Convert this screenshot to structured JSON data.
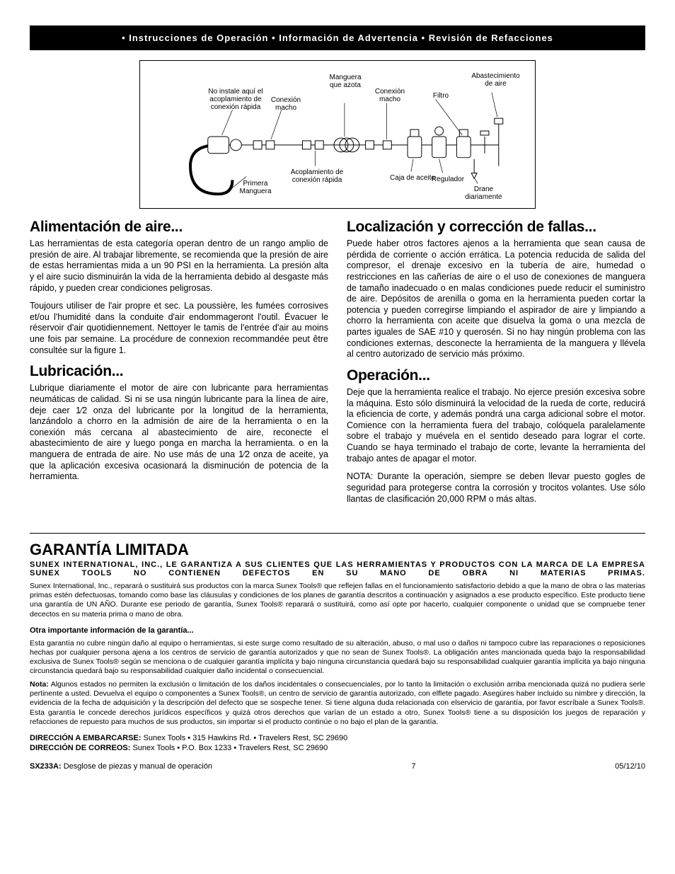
{
  "header": {
    "banner": "• Instrucciones de Operación • Información de Advertencia • Revisión de Refacciones"
  },
  "diagram": {
    "labels": {
      "manguera_azota": "Manguera\nque azota",
      "no_instale": "No instale aquí el\nacoplamiento de\nconexión rápida",
      "conexion_macho_1": "Conexión\nmacho",
      "conexion_macho_2": "Conexión\nmacho",
      "filtro": "Filtro",
      "abastecimiento": "Abastecimiento\nde aire",
      "primera_manguera": "Primera\nManguera",
      "acoplamiento": "Acoplamiento de\nconexión rápida",
      "caja_aceite": "Caja de aceite",
      "regulador": "Regulador",
      "drane": "Drane\ndiariamente"
    },
    "colors": {
      "stroke": "#000000",
      "bg": "#ffffff"
    }
  },
  "left_col": {
    "s1_h": "Alimentación de aire...",
    "s1_p1": "Las herramientas de esta categoría operan dentro de un rango amplio de presión de aire. Al trabajar libremente, se recomienda que la presión de aire de estas herramientas mida a un 90 PSI en la herramienta. La presión alta y el aire sucio disminuirán la vida de la herramienta debido al desgaste más rápido, y pueden crear condiciones peligrosas.",
    "s1_p2": "Toujours utiliser de l'air propre et sec. La poussière, les fumées corrosives et/ou l'humidité dans la conduite d'air endommageront l'outil. Évacuer le réservoir d'air quotidiennement. Nettoyer le tamis de l'entrée d'air au moins une fois par semaine. La procédure de connexion recommandée peut être consultée sur la figure 1.",
    "s2_h": "Lubricación...",
    "s2_p1": "Lubrique diariamente el motor de aire con lubricante para herramientas neumáticas de calidad.  Si ni se usa ningún lubricante para la línea de aire, deje caer 1⁄2 onza del lubricante por la longitud de la herramienta, lanzándolo a chorro en la admisión de aire de la herramienta o en la conexión más cercana al abastecimiento de aire, reconecte el abastecimiento de aire y luego ponga en marcha la herramienta.  o en la manguera de entrada de aire.  No use más de una 1⁄2 onza de aceite, ya que la aplicación excesiva ocasionará la disminución de potencia de la herramienta."
  },
  "right_col": {
    "s3_h": "Localización y corrección de fallas...",
    "s3_p1": "Puede haber otros factores ajenos a la herramienta que sean causa de pérdida de corriente o acción errática. La potencia reducida de salida del compresor, el drenaje excesivo en la tubería de aire, humedad o restricciones en las cañerías de aire o el uso de conexiones de manguera de tamaño inadecuado o en malas condiciones puede reducir el suministro de aire. Depósitos de arenilla o goma en la herramienta pueden cortar la potencia y pueden corregirse limpiando el aspirador de aire y limpiando a chorro la herramienta con aceite que disuelva la goma o una mezcla de partes iguales de SAE #10 y querosén. Si no hay ningún problema con las condiciones externas, desconecte la herramienta de la manguera y llévela al centro autorizado de servicio más próximo.",
    "s4_h": "Operación...",
    "s4_p1": "Deje que la herramienta realice el trabajo.  No ejerce presión excesiva sobre la máquina.  Esto sólo disminuirá la velocidad de la rueda de corte, reducirá la eficiencia de corte, y además pondrá una carga adicional sobre el motor.  Comience con la herramienta fuera del trabajo, colóquela paralelamente sobre el trabajo y muévela en el sentido deseado para lograr el corte.  Cuando se haya terminado el trabajo de corte, levante la herramienta del trabajo antes de apagar el motor.",
    "s4_p2": "NOTA: Durante la operación, siempre se deben llevar puesto gogles de seguridad para protegerse contra la corrosión y trocitos volantes.  Use sólo llantas de clasificación 20,000 RPM o más altas."
  },
  "warranty": {
    "heading": "GARANTÍA LIMITADA",
    "sub": "SUNEX INTERNATIONAL, INC., LE GARANTIZA A SUS CLIENTES QUE LAS HERRAMIENTAS Y PRODUCTOS CON LA MARCA DE LA EMPRESA SUNEX TOOLS NO CONTIENEN DEFECTOS EN SU MANO DE OBRA NI MATERIAS PRIMAS.",
    "p1": "Sunex International, Inc., reparará o sustituirá sus productos con la marca Sunex Tools® que reflejen fallas en el funcionamiento satisfactorio debido a que la mano de obra o las materias primas estén defectuosas, tomando como base las cláusulas y condiciones de los planes de garantía descritos a continuación y asignados a ese producto específico. Este producto tiene una garantía de UN AÑO.  Durante ese periodo de garantía, Sunex Tools® reparará o sustituirá, como así opte por hacerlo, cualquier componente o unidad que se compruebe tener decectos en su materia prima o mano de obra.",
    "otra_h": "Otra importante información de la garantía...",
    "p2": "Esta garantía no cubre ningún daño al equipo o herramientas, si este surge como resultado de su alteración, abuso, o mal uso o daños ni tampoco cubre las reparaciones o reposiciones hechas por cualquier persona ajena a los centros de servicio de garantía autorizados y que no sean de Sunex Tools®.  La obligación antes mancionada queda bajo la responsabilidad exclusiva de Sunex Tools® según se menciona o de cualquier garantía implícita y bajo ninguna circunstancia quedará bajo su responsabilidad cualquier garantía implícita ya bajo ninguna circunstancia quedará bajo su responsabilidad cualquier daño incidental o consecuencial.",
    "nota_label": "Nota:",
    "p3": " Algunos estados no permiten la exclusión o limitación de los daños incidentales o consecuenciales, por lo tanto la limitación o exclusión arriba mencionada quizá no pudiera serle pertinente a usted. Devuelva el equipo o componentes a Sunex Tools®, un centro de servicio de garantía autorizado, con elflete pagado. Asegúres haber incluido su nimbre y dirección, la evidencia de la fecha de adquisición y la descripción del defecto que se sospeche tener. Si tiene alguna duda relacionada con elservicio de garantía, por favor escríbale a Sunex Tools®. Esta garantía le concede derechos jurídicos específicos y quizá otros derechos que varían de un estado a otro, Sunex Tools® tiene a su disposición los juegos de reparación y refacciones de repuesto para muchos de sus productos, sin importar si el producto continúe o no bajo el plan de la garantía.",
    "addr1_label": "DIRECCIÓN A EMBARCARSE:",
    "addr1": " Sunex Tools • 315 Hawkins Rd. • Travelers Rest, SC 29690",
    "addr2_label": "DIRECCIÓN DE CORREOS:",
    "addr2": " Sunex Tools • P.O. Box 1233 • Travelers Rest, SC 29690"
  },
  "footer": {
    "model": "SX233A:",
    "model_desc": " Desglose de piezas y manual de operación",
    "page": "7",
    "date": "05/12/10"
  }
}
